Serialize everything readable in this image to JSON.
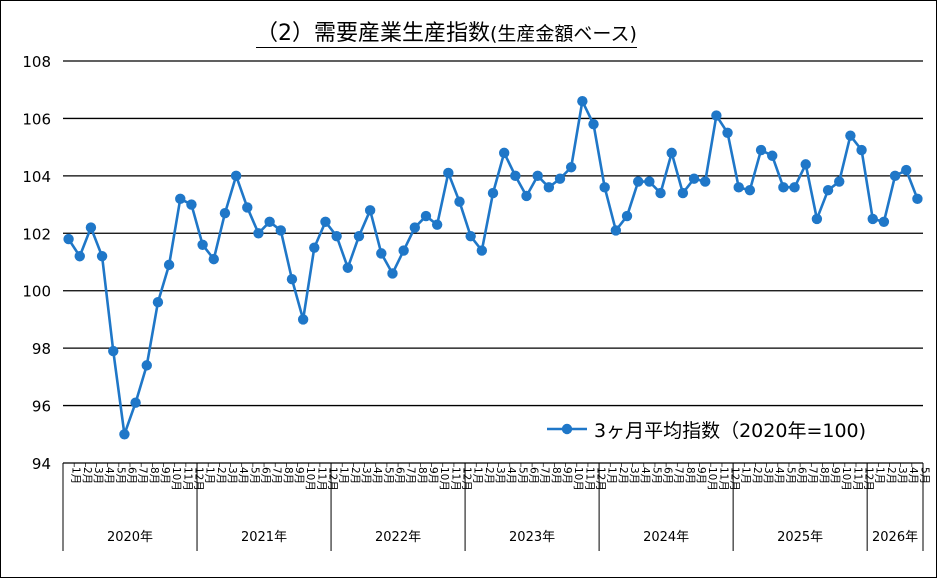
{
  "title": {
    "main": "（2）需要産業生産指数",
    "sub": "(生産金額ベース)"
  },
  "chart_data": {
    "type": "line",
    "ylim": [
      94,
      108
    ],
    "yticks": [
      "94",
      "96",
      "98",
      "100",
      "102",
      "104",
      "106",
      "108"
    ],
    "grid": true,
    "legend_position": "lower-right",
    "colors": {
      "series": "#1f77c8",
      "grid": "#000000"
    },
    "x_month_labels": [
      "1",
      "2",
      "3",
      "4",
      "5",
      "6",
      "7",
      "8",
      "9",
      "10",
      "11",
      "12",
      "1",
      "2",
      "3",
      "4",
      "5",
      "6",
      "7",
      "8",
      "9",
      "10",
      "11",
      "12",
      "1",
      "2",
      "3",
      "4",
      "5",
      "6",
      "7",
      "8",
      "9",
      "10",
      "11",
      "12",
      "1",
      "2",
      "3",
      "4",
      "5",
      "6",
      "7",
      "8",
      "9",
      "10",
      "11",
      "12",
      "1",
      "2",
      "3",
      "4",
      "5",
      "6",
      "7",
      "8",
      "9",
      "10",
      "11",
      "12",
      "1",
      "2",
      "3",
      "4",
      "5",
      "6",
      "7",
      "8",
      "9",
      "10",
      "11",
      "12",
      "1",
      "2",
      "3",
      "4",
      "5"
    ],
    "month_suffix": "月",
    "years": [
      {
        "label": "2020年",
        "months": 12
      },
      {
        "label": "2021年",
        "months": 12
      },
      {
        "label": "2022年",
        "months": 12
      },
      {
        "label": "2023年",
        "months": 12
      },
      {
        "label": "2024年",
        "months": 12
      },
      {
        "label": "2025年",
        "months": 12
      },
      {
        "label": "2026年",
        "months": 5
      }
    ],
    "series": [
      {
        "name": "3ヶ月平均指数（2020年=100)",
        "values": [
          101.8,
          101.2,
          102.2,
          101.2,
          97.9,
          95.0,
          96.1,
          97.4,
          99.6,
          100.9,
          103.2,
          103.0,
          101.6,
          101.1,
          102.7,
          104.0,
          102.9,
          102.0,
          102.4,
          102.1,
          100.4,
          99.0,
          101.5,
          102.4,
          101.9,
          100.8,
          101.9,
          102.8,
          101.3,
          100.6,
          101.4,
          102.2,
          102.6,
          102.3,
          104.1,
          103.1,
          101.9,
          101.4,
          103.4,
          104.8,
          104.0,
          103.3,
          104.0,
          103.6,
          103.9,
          104.3,
          106.6,
          105.8,
          103.6,
          102.1,
          102.6,
          103.8,
          103.8,
          103.4,
          104.8,
          103.4,
          103.9,
          103.8,
          106.1,
          105.5,
          103.6,
          103.5,
          104.9,
          104.7,
          103.6,
          103.6,
          104.4,
          102.5,
          103.5,
          103.8,
          105.4,
          104.9,
          102.5,
          102.4,
          104.0,
          104.2,
          103.2
        ]
      }
    ]
  }
}
